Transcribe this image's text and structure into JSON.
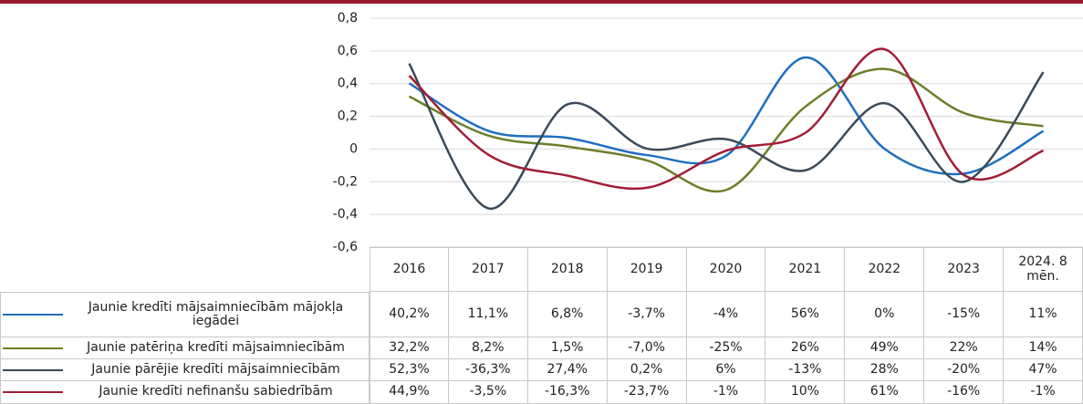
{
  "chart_data": {
    "type": "line",
    "categories": [
      "2016",
      "2017",
      "2018",
      "2019",
      "2020",
      "2021",
      "2022",
      "2023",
      "2024. 8 mēn."
    ],
    "ylim": [
      -0.6,
      0.8
    ],
    "yticks": [
      {
        "value": -0.6,
        "label": "-0,6"
      },
      {
        "value": -0.4,
        "label": "-0,4"
      },
      {
        "value": -0.2,
        "label": "-0,2"
      },
      0,
      {
        "value": 0.2,
        "label": "0,2"
      },
      {
        "value": 0.4,
        "label": "0,4"
      },
      {
        "value": 0.6,
        "label": "0,6"
      },
      {
        "value": 0.8,
        "label": "0,8"
      }
    ],
    "grid": true,
    "series": [
      {
        "name": "Jaunie kredīti mājsaimniecībām mājokļa iegādei",
        "color": "#1f6fc0",
        "values": [
          0.402,
          0.111,
          0.068,
          -0.037,
          -0.04,
          0.56,
          0,
          -0.15,
          0.11
        ],
        "value_labels": [
          "40,2%",
          "11,1%",
          "6,8%",
          "-3,7%",
          "-4%",
          "56%",
          "0%",
          "-15%",
          "11%"
        ]
      },
      {
        "name": "Jaunie patēriņa kredīti mājsaimniecībām",
        "color": "#6b7f2a",
        "values": [
          0.322,
          0.082,
          0.015,
          -0.07,
          -0.25,
          0.26,
          0.49,
          0.22,
          0.14
        ],
        "value_labels": [
          "32,2%",
          "8,2%",
          "1,5%",
          "-7,0%",
          "-25%",
          "26%",
          "49%",
          "22%",
          "14%"
        ]
      },
      {
        "name": "Jaunie pārējie kredīti mājsaimniecībām",
        "color": "#3c4a59",
        "values": [
          0.523,
          -0.363,
          0.274,
          0.002,
          0.06,
          -0.13,
          0.28,
          -0.2,
          0.47
        ],
        "value_labels": [
          "52,3%",
          "-36,3%",
          "27,4%",
          "0,2%",
          "6%",
          "-13%",
          "28%",
          "-20%",
          "47%"
        ]
      },
      {
        "name": "Jaunie kredīti nefinanšu sabiedrībām",
        "color": "#a21d36",
        "values": [
          0.449,
          -0.035,
          -0.163,
          -0.237,
          -0.01,
          0.1,
          0.61,
          -0.16,
          -0.01
        ],
        "value_labels": [
          "44,9%",
          "-3,5%",
          "-16,3%",
          "-23,7%",
          "-1%",
          "10%",
          "61%",
          "-16%",
          "-1%"
        ]
      }
    ]
  }
}
